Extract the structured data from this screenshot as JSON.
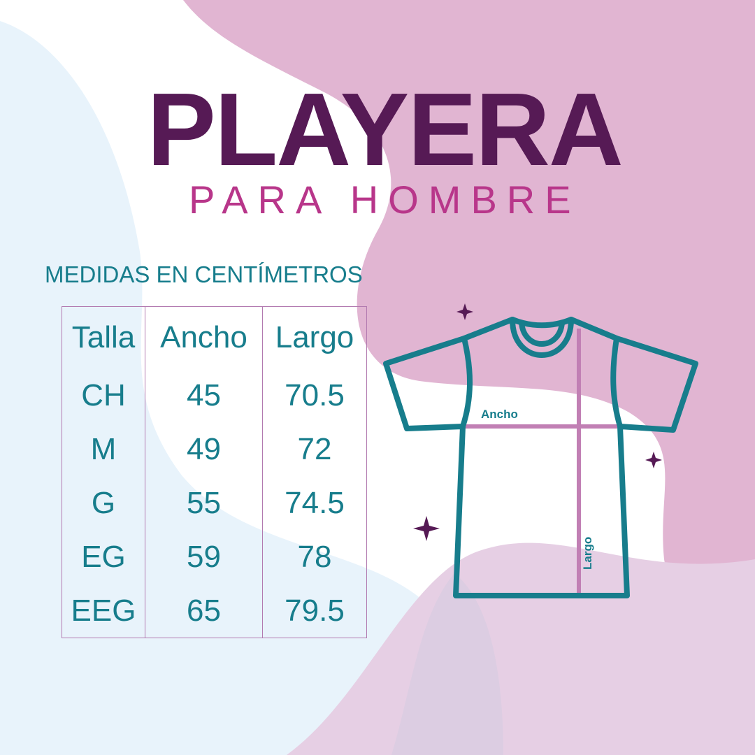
{
  "title": "PLAYERA",
  "subtitle": "PARA HOMBRE",
  "measures_label": "MEDIDAS EN CENTÍMETROS",
  "table": {
    "headers": [
      "Talla",
      "Ancho",
      "Largo"
    ],
    "rows": [
      [
        "CH",
        "45",
        "70.5"
      ],
      [
        "M",
        "49",
        "72"
      ],
      [
        "G",
        "55",
        "74.5"
      ],
      [
        "EG",
        "59",
        "78"
      ],
      [
        "EEG",
        "65",
        "79.5"
      ]
    ]
  },
  "diagram": {
    "width_label": "Ancho",
    "length_label": "Largo"
  },
  "colors": {
    "title": "#561a55",
    "subtitle": "#b8368a",
    "teal": "#177d8c",
    "pink": "#e1b5d2",
    "light_blue": "#e8f3fb",
    "line": "#c17fb4"
  }
}
